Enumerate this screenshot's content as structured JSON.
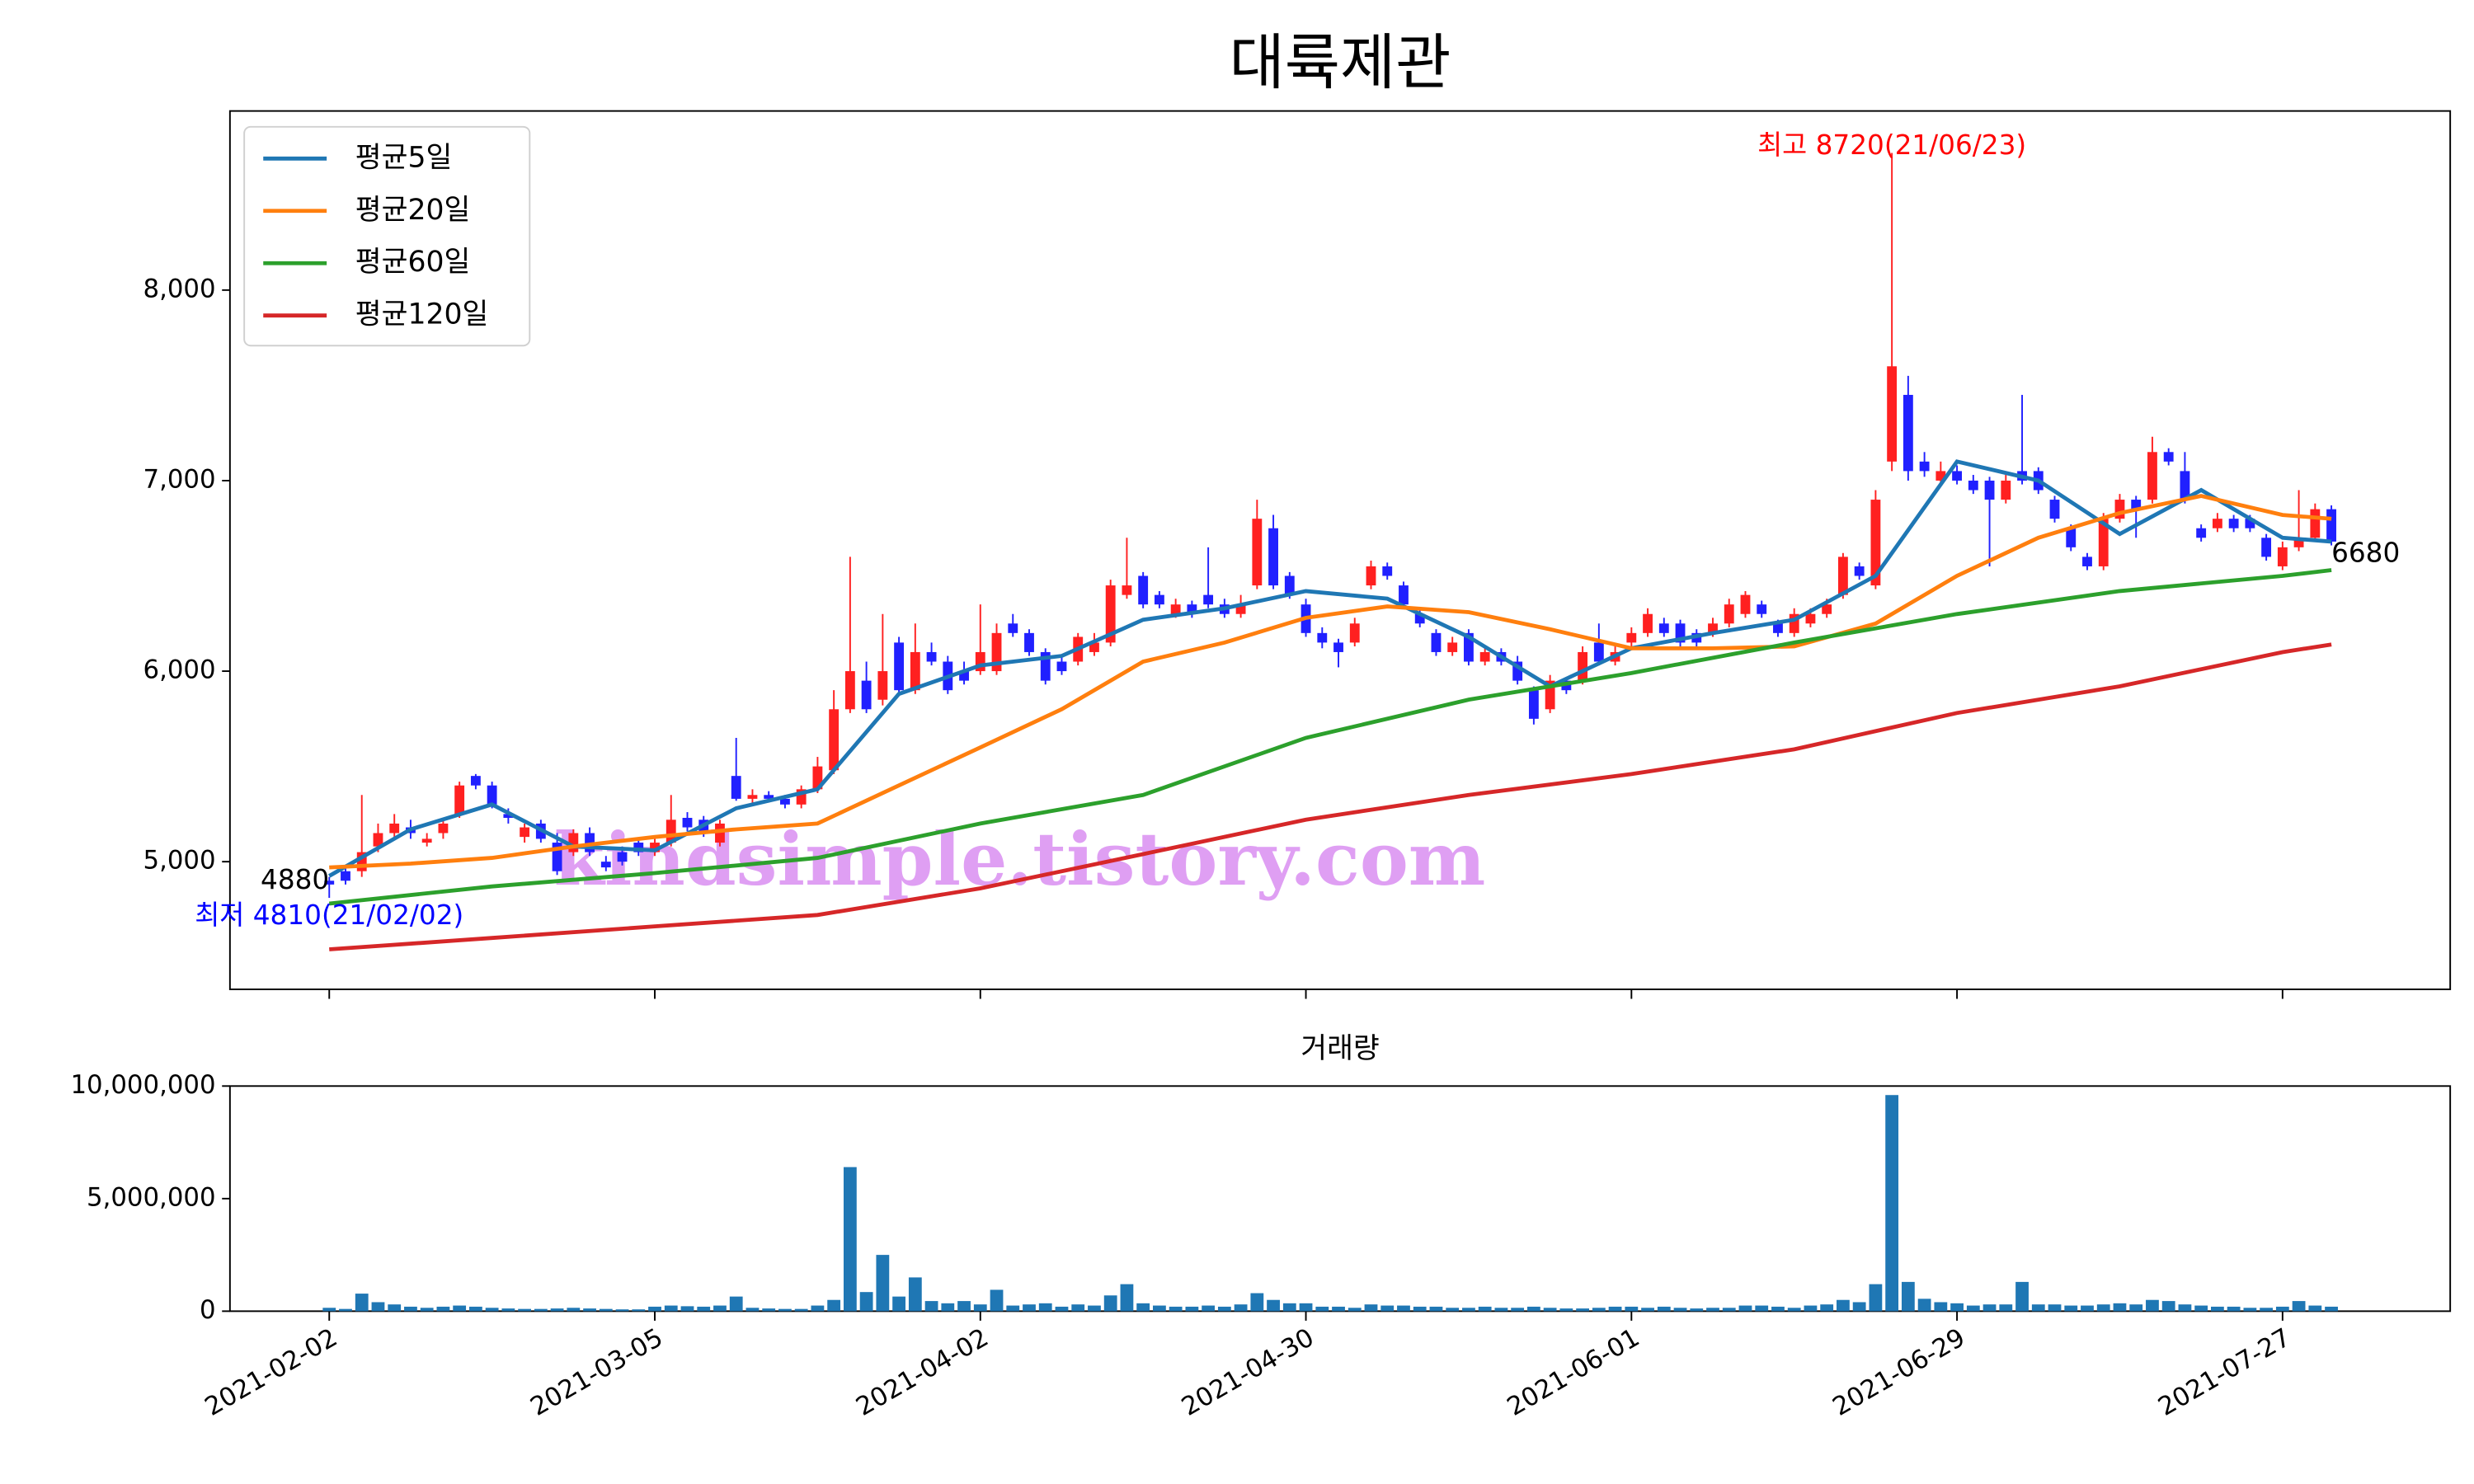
{
  "chart_data": {
    "type": "candlestick",
    "title": "대륙제관",
    "watermark": "kindsimple.tistory.com",
    "high_label": "최고 8720(21/06/23)",
    "low_label": "최저 4810(21/02/02)",
    "up_color": "#ff2020",
    "down_color": "#2020ff",
    "high_color": "#ff0000",
    "low_color": "#0000ff",
    "ylim": [
      4330,
      8940
    ],
    "yticks": [
      {
        "value": 5000,
        "label": "5,000"
      },
      {
        "value": 6000,
        "label": "6,000"
      },
      {
        "value": 7000,
        "label": "7,000"
      },
      {
        "value": 8000,
        "label": "8,000"
      }
    ],
    "categories": [
      "2021-02-02",
      null,
      null,
      null,
      null,
      null,
      null,
      null,
      null,
      null,
      null,
      null,
      null,
      null,
      null,
      null,
      null,
      null,
      null,
      null,
      "2021-03-05",
      null,
      null,
      null,
      null,
      null,
      null,
      null,
      null,
      null,
      null,
      null,
      null,
      null,
      null,
      null,
      null,
      null,
      null,
      null,
      "2021-04-02",
      null,
      null,
      null,
      null,
      null,
      null,
      null,
      null,
      null,
      null,
      null,
      null,
      null,
      null,
      null,
      null,
      null,
      null,
      null,
      "2021-04-30",
      null,
      null,
      null,
      null,
      null,
      null,
      null,
      null,
      null,
      null,
      null,
      null,
      null,
      null,
      null,
      null,
      null,
      null,
      null,
      "2021-06-01",
      null,
      null,
      null,
      null,
      null,
      null,
      null,
      null,
      null,
      null,
      null,
      null,
      null,
      null,
      null,
      null,
      null,
      null,
      null,
      "2021-06-29",
      null,
      null,
      null,
      null,
      null,
      null,
      null,
      null,
      null,
      null,
      null,
      null,
      null,
      null,
      null,
      null,
      null,
      null,
      null,
      "2021-07-27",
      null,
      null,
      null
    ],
    "ohlc": [
      [
        4900,
        4920,
        4810,
        4880
      ],
      [
        4950,
        4980,
        4880,
        4900
      ],
      [
        4950,
        5350,
        4920,
        5050
      ],
      [
        5080,
        5200,
        5050,
        5150
      ],
      [
        5150,
        5250,
        5120,
        5200
      ],
      [
        5180,
        5220,
        5120,
        5150
      ],
      [
        5100,
        5150,
        5080,
        5120
      ],
      [
        5150,
        5230,
        5120,
        5200
      ],
      [
        5250,
        5420,
        5230,
        5400
      ],
      [
        5450,
        5460,
        5380,
        5400
      ],
      [
        5400,
        5420,
        5280,
        5300
      ],
      [
        5250,
        5280,
        5200,
        5230
      ],
      [
        5130,
        5200,
        5100,
        5180
      ],
      [
        5200,
        5220,
        5100,
        5120
      ],
      [
        5100,
        5150,
        4930,
        4950
      ],
      [
        5050,
        5170,
        5030,
        5150
      ],
      [
        5150,
        5180,
        5030,
        5050
      ],
      [
        5000,
        5030,
        4950,
        4970
      ],
      [
        5050,
        5080,
        4980,
        5000
      ],
      [
        5100,
        5120,
        5030,
        5050
      ],
      [
        5050,
        5120,
        5030,
        5100
      ],
      [
        5100,
        5350,
        5080,
        5220
      ],
      [
        5230,
        5260,
        5160,
        5180
      ],
      [
        5220,
        5240,
        5130,
        5150
      ],
      [
        5100,
        5220,
        5080,
        5200
      ],
      [
        5450,
        5650,
        5320,
        5330
      ],
      [
        5330,
        5380,
        5310,
        5350
      ],
      [
        5350,
        5370,
        5310,
        5330
      ],
      [
        5330,
        5350,
        5280,
        5300
      ],
      [
        5300,
        5400,
        5280,
        5380
      ],
      [
        5380,
        5550,
        5360,
        5500
      ],
      [
        5480,
        5900,
        5460,
        5800
      ],
      [
        5800,
        6600,
        5780,
        6000
      ],
      [
        5950,
        6050,
        5780,
        5800
      ],
      [
        5850,
        6300,
        5820,
        6000
      ],
      [
        6150,
        6180,
        5880,
        5900
      ],
      [
        5900,
        6250,
        5880,
        6100
      ],
      [
        6100,
        6150,
        6030,
        6050
      ],
      [
        6050,
        6080,
        5880,
        5900
      ],
      [
        6000,
        6050,
        5930,
        5950
      ],
      [
        6000,
        6350,
        5980,
        6100
      ],
      [
        6000,
        6250,
        5980,
        6200
      ],
      [
        6250,
        6300,
        6180,
        6200
      ],
      [
        6200,
        6220,
        6080,
        6100
      ],
      [
        6100,
        6120,
        5930,
        5950
      ],
      [
        6050,
        6080,
        5980,
        6000
      ],
      [
        6050,
        6200,
        6030,
        6180
      ],
      [
        6100,
        6200,
        6080,
        6150
      ],
      [
        6150,
        6480,
        6130,
        6450
      ],
      [
        6400,
        6700,
        6380,
        6450
      ],
      [
        6500,
        6520,
        6330,
        6350
      ],
      [
        6400,
        6420,
        6330,
        6350
      ],
      [
        6300,
        6380,
        6280,
        6350
      ],
      [
        6350,
        6370,
        6280,
        6300
      ],
      [
        6400,
        6650,
        6330,
        6350
      ],
      [
        6350,
        6380,
        6280,
        6300
      ],
      [
        6300,
        6400,
        6280,
        6350
      ],
      [
        6450,
        6900,
        6430,
        6800
      ],
      [
        6750,
        6820,
        6430,
        6450
      ],
      [
        6500,
        6520,
        6380,
        6400
      ],
      [
        6350,
        6380,
        6180,
        6200
      ],
      [
        6200,
        6230,
        6120,
        6150
      ],
      [
        6150,
        6170,
        6020,
        6100
      ],
      [
        6150,
        6280,
        6130,
        6250
      ],
      [
        6450,
        6580,
        6430,
        6550
      ],
      [
        6550,
        6570,
        6480,
        6500
      ],
      [
        6450,
        6470,
        6330,
        6350
      ],
      [
        6300,
        6320,
        6230,
        6250
      ],
      [
        6200,
        6220,
        6080,
        6100
      ],
      [
        6100,
        6180,
        6080,
        6150
      ],
      [
        6200,
        6220,
        6030,
        6050
      ],
      [
        6050,
        6120,
        6030,
        6100
      ],
      [
        6100,
        6120,
        6030,
        6050
      ],
      [
        6050,
        6080,
        5930,
        5950
      ],
      [
        5900,
        5920,
        5720,
        5750
      ],
      [
        5800,
        5980,
        5780,
        5950
      ],
      [
        5950,
        5970,
        5880,
        5900
      ],
      [
        5950,
        6130,
        5930,
        6100
      ],
      [
        6150,
        6250,
        6030,
        6050
      ],
      [
        6050,
        6130,
        6030,
        6100
      ],
      [
        6150,
        6230,
        6130,
        6200
      ],
      [
        6200,
        6330,
        6180,
        6300
      ],
      [
        6250,
        6280,
        6180,
        6200
      ],
      [
        6250,
        6270,
        6130,
        6150
      ],
      [
        6200,
        6220,
        6130,
        6150
      ],
      [
        6200,
        6280,
        6180,
        6250
      ],
      [
        6250,
        6380,
        6230,
        6350
      ],
      [
        6300,
        6420,
        6280,
        6400
      ],
      [
        6350,
        6370,
        6280,
        6300
      ],
      [
        6250,
        6270,
        6180,
        6200
      ],
      [
        6200,
        6330,
        6180,
        6300
      ],
      [
        6250,
        6330,
        6230,
        6300
      ],
      [
        6300,
        6380,
        6280,
        6350
      ],
      [
        6400,
        6620,
        6380,
        6600
      ],
      [
        6550,
        6570,
        6480,
        6500
      ],
      [
        6450,
        6950,
        6430,
        6900
      ],
      [
        7100,
        8720,
        7050,
        7600
      ],
      [
        7450,
        7550,
        7000,
        7050
      ],
      [
        7100,
        7150,
        7020,
        7050
      ],
      [
        7000,
        7100,
        6980,
        7050
      ],
      [
        7050,
        7080,
        6980,
        7000
      ],
      [
        7000,
        7030,
        6930,
        6950
      ],
      [
        7000,
        7020,
        6550,
        6900
      ],
      [
        6900,
        7030,
        6880,
        7000
      ],
      [
        7050,
        7450,
        6980,
        7000
      ],
      [
        7050,
        7070,
        6930,
        6950
      ],
      [
        6900,
        6920,
        6780,
        6800
      ],
      [
        6750,
        6770,
        6630,
        6650
      ],
      [
        6600,
        6620,
        6530,
        6550
      ],
      [
        6550,
        6830,
        6530,
        6800
      ],
      [
        6800,
        6930,
        6780,
        6900
      ],
      [
        6900,
        6920,
        6700,
        6850
      ],
      [
        6900,
        7230,
        6880,
        7150
      ],
      [
        7150,
        7170,
        7080,
        7100
      ],
      [
        7050,
        7150,
        6880,
        6900
      ],
      [
        6750,
        6770,
        6680,
        6700
      ],
      [
        6750,
        6830,
        6730,
        6800
      ],
      [
        6800,
        6820,
        6730,
        6750
      ],
      [
        6800,
        6820,
        6730,
        6750
      ],
      [
        6700,
        6720,
        6580,
        6600
      ],
      [
        6550,
        6680,
        6530,
        6650
      ],
      [
        6650,
        6950,
        6630,
        6700
      ],
      [
        6700,
        6880,
        6680,
        6850
      ],
      [
        6850,
        6870,
        6660,
        6680
      ]
    ],
    "series": [
      {
        "name": "평균5일",
        "color": "#1f77b4",
        "x": [
          0,
          5,
          10,
          15,
          20,
          25,
          30,
          35,
          40,
          45,
          50,
          55,
          60,
          65,
          70,
          75,
          80,
          85,
          90,
          95,
          100,
          105,
          110,
          115,
          120,
          123
        ],
        "values": [
          4925,
          5170,
          5300,
          5080,
          5060,
          5280,
          5380,
          5880,
          6030,
          6080,
          6270,
          6330,
          6420,
          6380,
          6180,
          5920,
          6120,
          6200,
          6270,
          6500,
          7100,
          7000,
          6720,
          6950,
          6700,
          6680
        ]
      },
      {
        "name": "평균20일",
        "color": "#ff7f0e",
        "x": [
          0,
          5,
          10,
          15,
          20,
          25,
          30,
          35,
          40,
          45,
          50,
          55,
          60,
          65,
          70,
          75,
          80,
          85,
          90,
          95,
          100,
          105,
          110,
          115,
          120,
          123
        ],
        "values": [
          4970,
          4990,
          5020,
          5080,
          5130,
          5170,
          5200,
          5400,
          5600,
          5800,
          6050,
          6150,
          6280,
          6340,
          6310,
          6220,
          6120,
          6120,
          6130,
          6250,
          6500,
          6700,
          6830,
          6920,
          6820,
          6800
        ]
      },
      {
        "name": "평균60일",
        "color": "#2ca02c",
        "x": [
          0,
          10,
          20,
          30,
          40,
          50,
          60,
          70,
          80,
          90,
          100,
          110,
          120,
          123
        ],
        "values": [
          4780,
          4870,
          4940,
          5020,
          5200,
          5350,
          5650,
          5850,
          5990,
          6150,
          6300,
          6420,
          6500,
          6530
        ]
      },
      {
        "name": "평균120일",
        "color": "#d62728",
        "x": [
          0,
          10,
          20,
          30,
          40,
          50,
          60,
          70,
          80,
          90,
          100,
          110,
          120,
          123
        ],
        "values": [
          4540,
          4600,
          4660,
          4720,
          4860,
          5040,
          5220,
          5350,
          5460,
          5590,
          5780,
          5920,
          6100,
          6140
        ]
      }
    ],
    "volume": {
      "title": "거래량",
      "color": "#1f77b4",
      "ylim": [
        0,
        10000000
      ],
      "yticks": [
        0,
        {
          "value": 5000000,
          "label": "5,000,000"
        },
        {
          "value": 10000000,
          "label": "10,000,000"
        }
      ],
      "values": [
        150000,
        100000,
        780000,
        400000,
        300000,
        200000,
        150000,
        200000,
        250000,
        200000,
        150000,
        120000,
        100000,
        100000,
        120000,
        150000,
        120000,
        100000,
        80000,
        80000,
        200000,
        250000,
        220000,
        200000,
        250000,
        650000,
        150000,
        120000,
        100000,
        100000,
        250000,
        500000,
        6400000,
        850000,
        2500000,
        650000,
        1500000,
        450000,
        350000,
        450000,
        300000,
        950000,
        250000,
        300000,
        350000,
        200000,
        300000,
        250000,
        700000,
        1200000,
        350000,
        250000,
        200000,
        200000,
        250000,
        200000,
        300000,
        800000,
        500000,
        350000,
        350000,
        200000,
        200000,
        150000,
        300000,
        250000,
        250000,
        200000,
        200000,
        150000,
        150000,
        200000,
        150000,
        150000,
        200000,
        150000,
        120000,
        120000,
        150000,
        200000,
        200000,
        150000,
        200000,
        150000,
        120000,
        150000,
        150000,
        250000,
        250000,
        200000,
        150000,
        250000,
        300000,
        500000,
        400000,
        1200000,
        9600000,
        1300000,
        550000,
        400000,
        350000,
        250000,
        300000,
        300000,
        1300000,
        300000,
        300000,
        250000,
        250000,
        300000,
        350000,
        300000,
        500000,
        450000,
        300000,
        250000,
        200000,
        200000,
        150000,
        150000,
        200000,
        450000,
        250000,
        200000
      ]
    }
  }
}
